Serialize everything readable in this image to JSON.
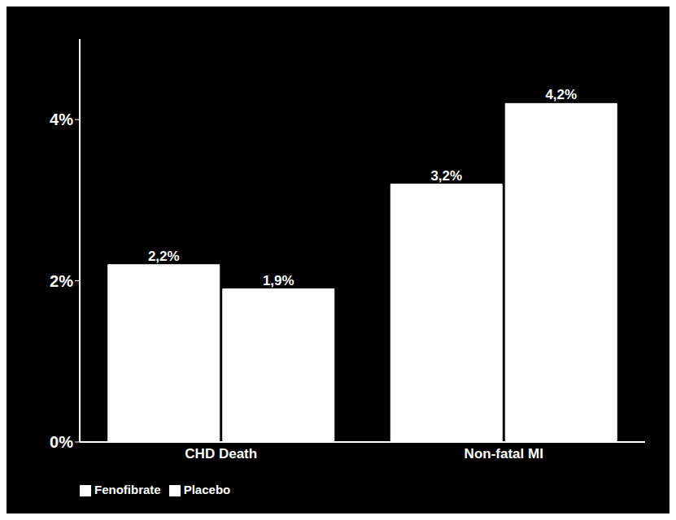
{
  "chart_data": {
    "type": "bar",
    "categories": [
      "CHD Death",
      "Non-fatal MI"
    ],
    "series": [
      {
        "name": "Fenofibrate",
        "color": "#ffffff",
        "values": [
          2.2,
          3.2
        ],
        "value_labels": [
          "2,2%",
          "3,2%"
        ]
      },
      {
        "name": "Placebo",
        "color": "#ffffff",
        "values": [
          1.9,
          4.2
        ],
        "value_labels": [
          "1,9%",
          "4,2%"
        ]
      }
    ],
    "ylim": [
      0,
      5
    ],
    "yticks": [
      {
        "value": 0,
        "label": "0%"
      },
      {
        "value": 2,
        "label": "2%"
      },
      {
        "value": 4,
        "label": "4%"
      }
    ],
    "data_labels": true,
    "legend": "bottom",
    "grid": false
  }
}
